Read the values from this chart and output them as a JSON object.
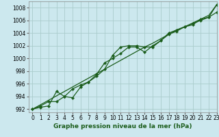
{
  "xlabel_bottom": "Graphe pression niveau de la mer (hPa)",
  "bg_color": "#cce8ee",
  "grid_color": "#aacccc",
  "line_color": "#1a5c1a",
  "x_values": [
    0,
    1,
    2,
    3,
    4,
    5,
    6,
    7,
    8,
    9,
    10,
    11,
    12,
    13,
    14,
    15,
    16,
    17,
    18,
    19,
    20,
    21,
    22,
    23
  ],
  "line_upper": [
    992.0,
    992.5,
    993.2,
    993.2,
    994.0,
    995.2,
    995.8,
    996.3,
    997.2,
    998.3,
    1000.5,
    1001.8,
    1002.0,
    1002.0,
    1001.8,
    1001.8,
    1002.8,
    1003.8,
    1004.3,
    1005.0,
    1005.3,
    1006.2,
    1006.5,
    1008.5
  ],
  "line_lower": [
    992.0,
    992.3,
    992.5,
    994.8,
    994.0,
    993.8,
    995.5,
    996.3,
    997.5,
    999.3,
    1000.0,
    1000.8,
    1001.8,
    1001.8,
    1001.0,
    1002.0,
    1002.8,
    1004.0,
    1004.5,
    1005.0,
    1005.5,
    1006.0,
    1006.5,
    1007.3
  ],
  "line_straight": [
    992.0,
    992.7,
    993.4,
    994.1,
    994.8,
    995.5,
    996.2,
    996.9,
    997.6,
    998.3,
    999.0,
    999.7,
    1000.4,
    1001.1,
    1001.8,
    1002.4,
    1003.1,
    1003.8,
    1004.5,
    1005.0,
    1005.6,
    1006.2,
    1006.8,
    1008.5
  ],
  "ylim": [
    991.5,
    1009.0
  ],
  "xlim": [
    -0.5,
    23
  ],
  "yticks": [
    992,
    994,
    996,
    998,
    1000,
    1002,
    1004,
    1006,
    1008
  ],
  "xticks": [
    0,
    1,
    2,
    3,
    4,
    5,
    6,
    7,
    8,
    9,
    10,
    11,
    12,
    13,
    14,
    15,
    16,
    17,
    18,
    19,
    20,
    21,
    22,
    23
  ],
  "xlabel_fontsize": 6.5,
  "tick_fontsize": 5.5
}
